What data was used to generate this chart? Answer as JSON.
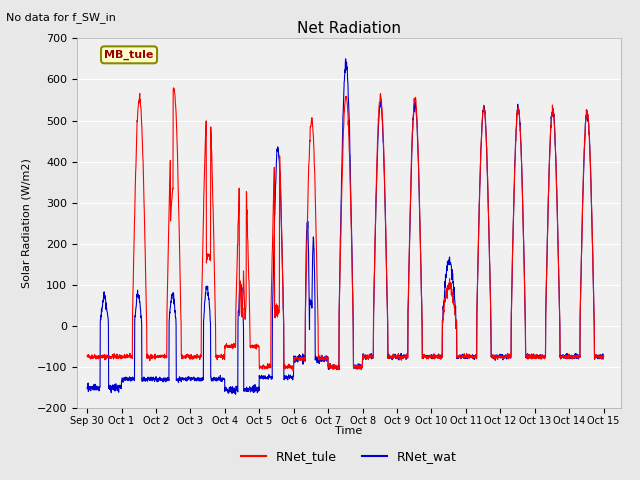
{
  "title": "Net Radiation",
  "subtitle": "No data for f_SW_in",
  "ylabel": "Solar Radiation (W/m2)",
  "xlabel": "Time",
  "ylim": [
    -200,
    700
  ],
  "xlim": [
    -0.3,
    15.5
  ],
  "legend_labels": [
    "RNet_tule",
    "RNet_wat"
  ],
  "legend_colors": [
    "#ff0000",
    "#0000cc"
  ],
  "bg_color": "#e8e8e8",
  "plot_bg_color": "#f0f0f0",
  "annotation_text": "MB_tule",
  "annotation_bg": "#ffffcc",
  "annotation_border": "#888800",
  "tick_labels": [
    "Sep 30",
    "Oct 1",
    "Oct 2",
    "Oct 3",
    "Oct 4",
    "Oct 5",
    "Oct 6",
    "Oct 7",
    "Oct 8",
    "Oct 9",
    "Oct 10",
    "Oct 11",
    "Oct 12",
    "Oct 13",
    "Oct 14",
    "Oct 15"
  ],
  "tick_positions": [
    0,
    1,
    2,
    3,
    4,
    5,
    6,
    7,
    8,
    9,
    10,
    11,
    12,
    13,
    14,
    15
  ]
}
